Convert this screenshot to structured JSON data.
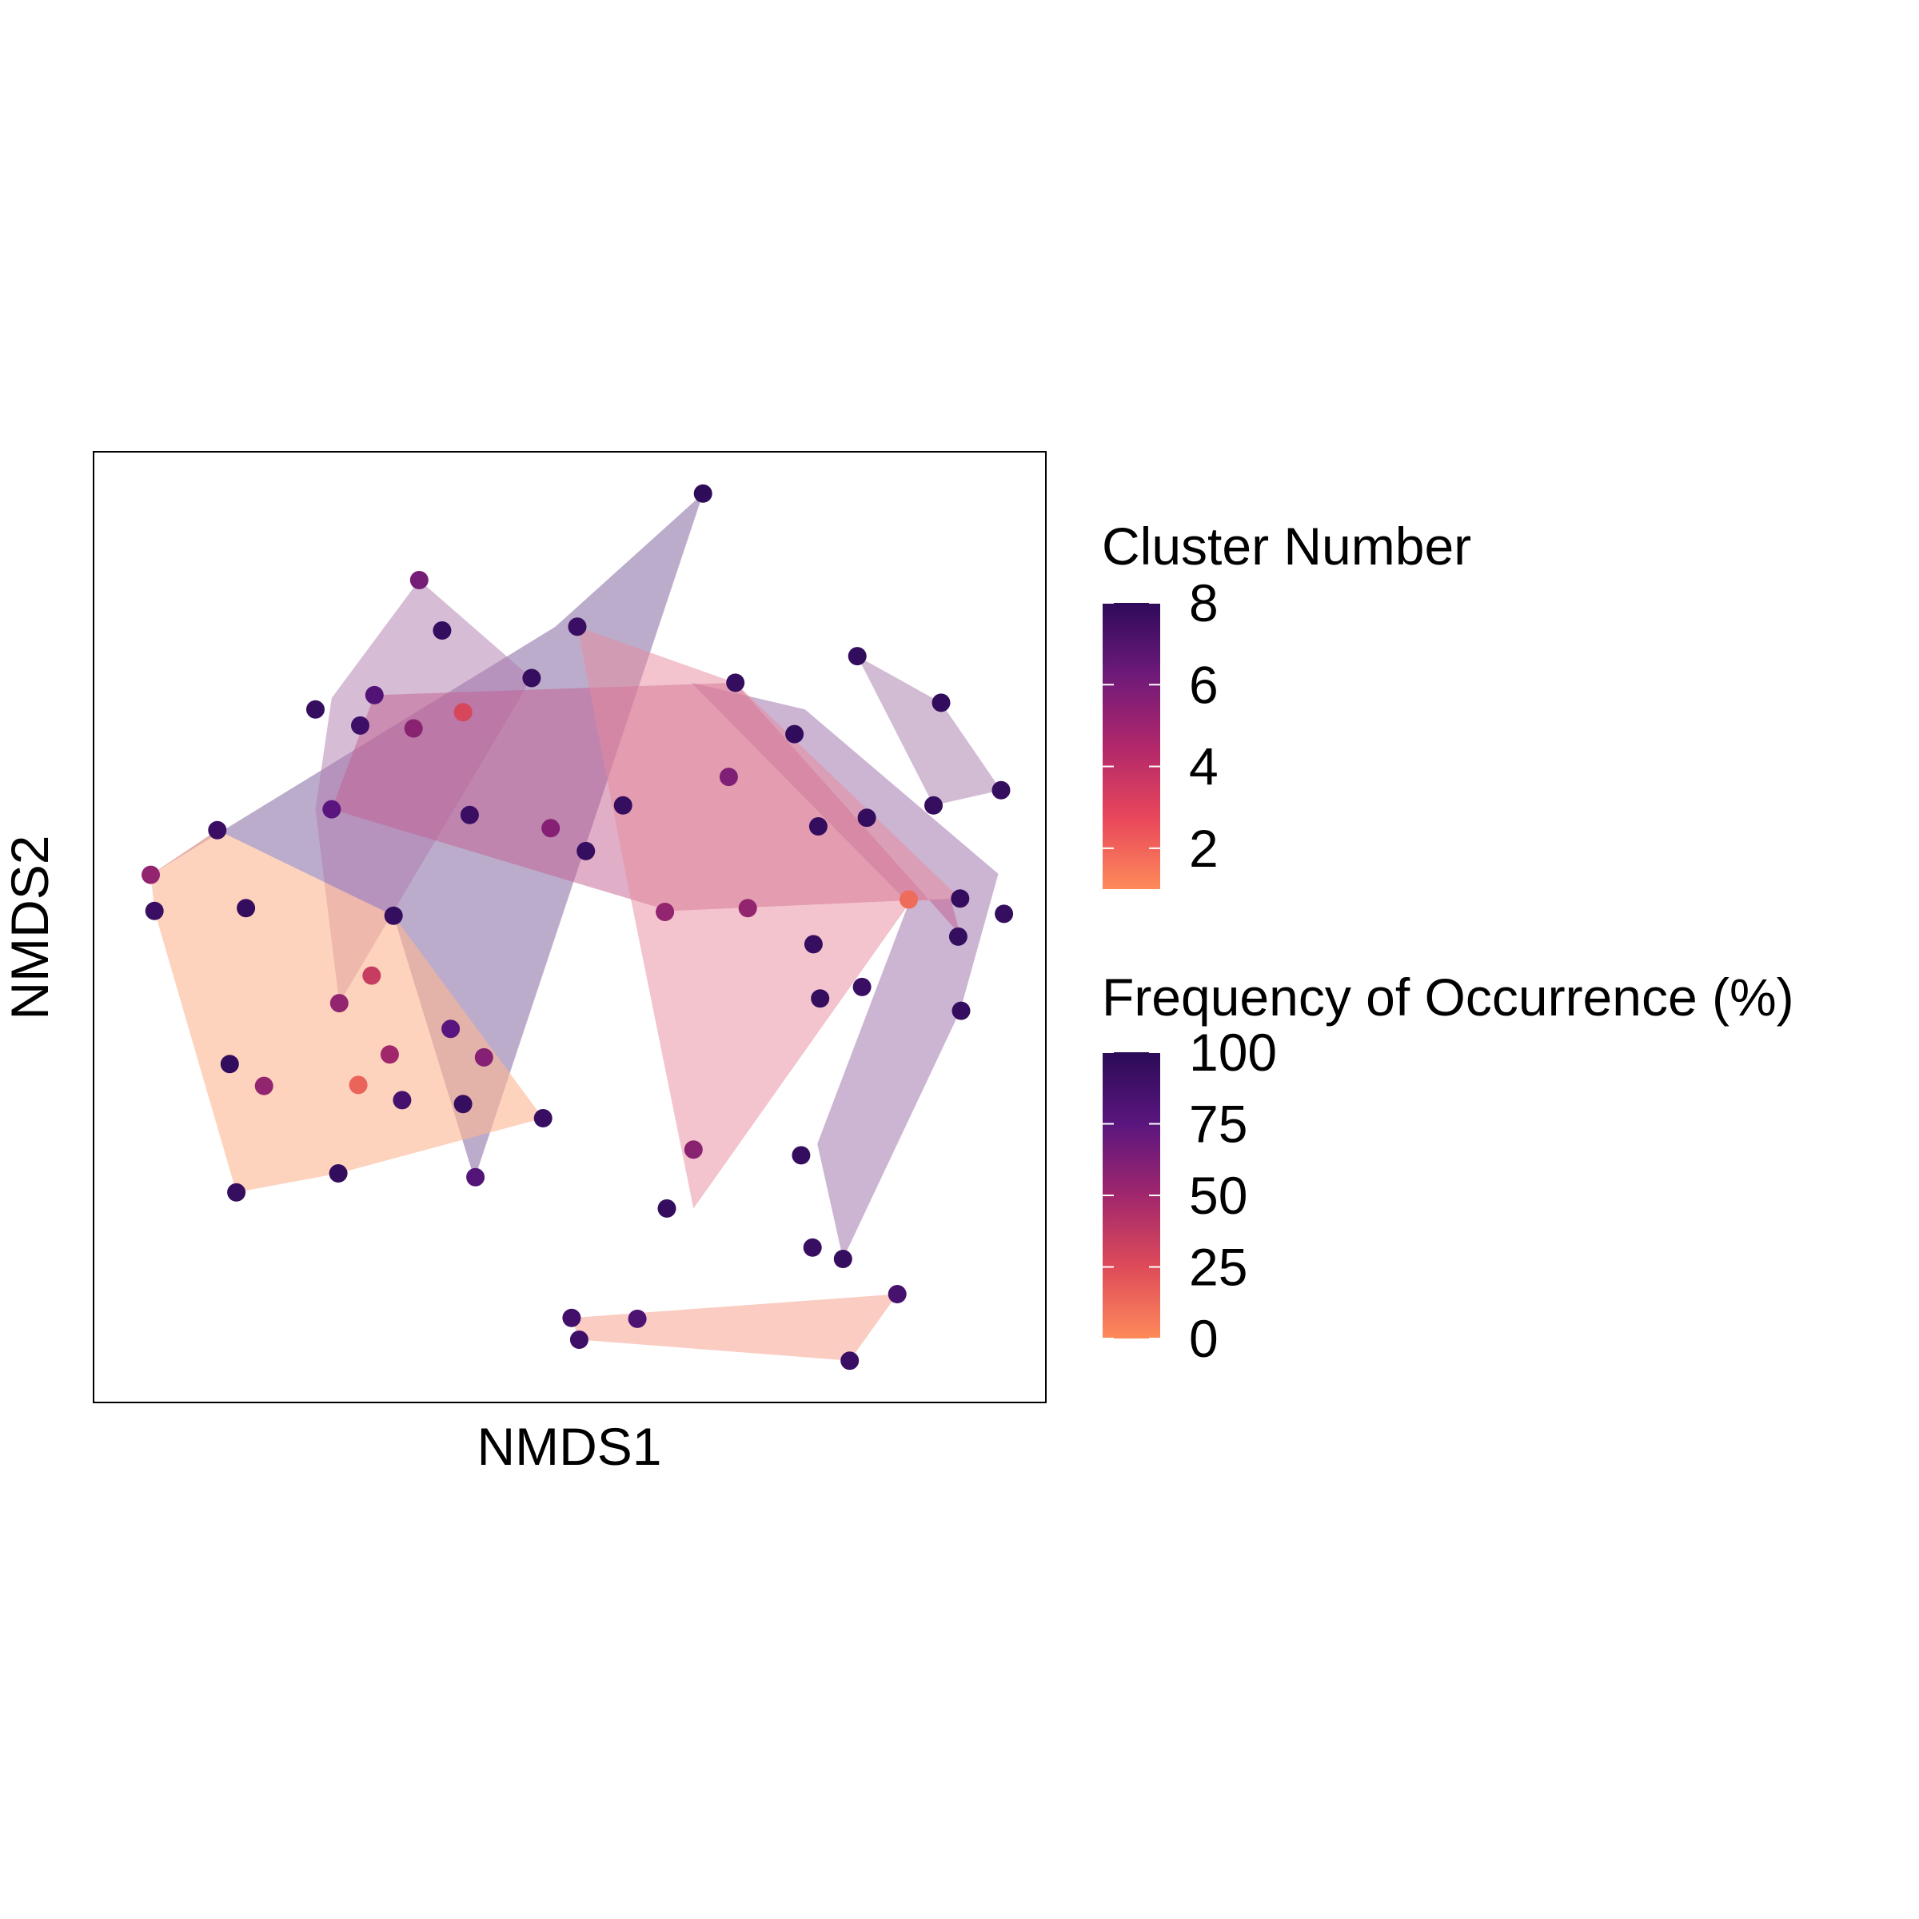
{
  "chart_data": {
    "type": "scatter",
    "xlabel": "NMDS1",
    "ylabel": "NMDS2",
    "xlim": [
      0,
      1
    ],
    "ylim": [
      0,
      1
    ],
    "axis_ticks": false,
    "grid": false,
    "legend_position": "right",
    "legends": [
      {
        "title": "Cluster Number",
        "kind": "colorbar",
        "range": [
          1,
          8
        ],
        "ticks": [
          "8",
          "6",
          "4",
          "2"
        ],
        "tick_values": [
          8,
          6,
          4,
          2
        ],
        "colors": [
          "#fe8a5a",
          "#e8475b",
          "#b1276b",
          "#6e1a7a",
          "#2e0a5a"
        ]
      },
      {
        "title": "Frequency of Occurrence (%)",
        "kind": "colorbar",
        "range": [
          0,
          100
        ],
        "ticks": [
          "100",
          "75",
          "50",
          "25",
          "0"
        ],
        "tick_values": [
          100,
          75,
          50,
          25,
          0
        ],
        "colors": [
          "#2b0b57",
          "#5a167e",
          "#a1276d",
          "#de4b59",
          "#fe8a5a"
        ]
      }
    ],
    "hulls": [
      {
        "cluster": 8,
        "color": "#7a5a9a",
        "opacity": 0.5,
        "points": [
          [
            0.06,
            0.555
          ],
          [
            0.13,
            0.602
          ],
          [
            0.315,
            0.512
          ],
          [
            0.4,
            0.235
          ],
          [
            0.64,
            0.956
          ],
          [
            0.485,
            0.816
          ]
        ]
      },
      {
        "cluster": 7,
        "color": "#9a6aa8",
        "opacity": 0.5,
        "points": [
          [
            0.628,
            0.757
          ],
          [
            0.747,
            0.729
          ],
          [
            0.95,
            0.556
          ],
          [
            0.91,
            0.412
          ],
          [
            0.787,
            0.151
          ],
          [
            0.76,
            0.272
          ],
          [
            0.856,
            0.525
          ]
        ]
      },
      {
        "cluster": 7,
        "color": "#a679a9",
        "opacity": 0.5,
        "points": [
          [
            0.802,
            0.785
          ],
          [
            0.89,
            0.736
          ],
          [
            0.953,
            0.644
          ],
          [
            0.882,
            0.628
          ]
        ]
      },
      {
        "cluster": 6,
        "color": "#b07aae",
        "opacity": 0.5,
        "points": [
          [
            0.25,
            0.741
          ],
          [
            0.233,
            0.624
          ],
          [
            0.258,
            0.42
          ],
          [
            0.46,
            0.762
          ],
          [
            0.342,
            0.865
          ]
        ]
      },
      {
        "cluster": 5,
        "color": "#c25e8f",
        "opacity": 0.5,
        "points": [
          [
            0.295,
            0.744
          ],
          [
            0.674,
            0.757
          ],
          [
            0.91,
            0.492
          ],
          [
            0.9,
            0.53
          ],
          [
            0.605,
            0.517
          ],
          [
            0.25,
            0.624
          ]
        ]
      },
      {
        "cluster": 4,
        "color": "#e88a9c",
        "opacity": 0.5,
        "points": [
          [
            0.508,
            0.816
          ],
          [
            0.674,
            0.757
          ],
          [
            0.91,
            0.53
          ],
          [
            0.858,
            0.527
          ],
          [
            0.63,
            0.204
          ],
          [
            0.56,
            0.55
          ]
        ]
      },
      {
        "cluster": 3,
        "color": "#f59a86",
        "opacity": 0.5,
        "points": [
          [
            0.502,
            0.089
          ],
          [
            0.51,
            0.066
          ],
          [
            0.794,
            0.044
          ],
          [
            0.844,
            0.114
          ]
        ]
      },
      {
        "cluster": 1,
        "color": "#fdb591",
        "opacity": 0.6,
        "points": [
          [
            0.06,
            0.555
          ],
          [
            0.064,
            0.517
          ],
          [
            0.15,
            0.221
          ],
          [
            0.257,
            0.241
          ],
          [
            0.472,
            0.299
          ],
          [
            0.315,
            0.512
          ],
          [
            0.13,
            0.602
          ]
        ]
      }
    ],
    "points": [
      {
        "x": 0.64,
        "y": 0.956,
        "freq": 2
      },
      {
        "x": 0.342,
        "y": 0.865,
        "freq": 35
      },
      {
        "x": 0.366,
        "y": 0.812,
        "freq": 5
      },
      {
        "x": 0.508,
        "y": 0.816,
        "freq": 8
      },
      {
        "x": 0.46,
        "y": 0.762,
        "freq": 6
      },
      {
        "x": 0.295,
        "y": 0.744,
        "freq": 20
      },
      {
        "x": 0.674,
        "y": 0.757,
        "freq": 5
      },
      {
        "x": 0.802,
        "y": 0.785,
        "freq": 4
      },
      {
        "x": 0.233,
        "y": 0.729,
        "freq": 6
      },
      {
        "x": 0.28,
        "y": 0.712,
        "freq": 10
      },
      {
        "x": 0.336,
        "y": 0.709,
        "freq": 42
      },
      {
        "x": 0.388,
        "y": 0.726,
        "freq": 72
      },
      {
        "x": 0.89,
        "y": 0.736,
        "freq": 4
      },
      {
        "x": 0.736,
        "y": 0.703,
        "freq": 3
      },
      {
        "x": 0.667,
        "y": 0.658,
        "freq": 38
      },
      {
        "x": 0.953,
        "y": 0.644,
        "freq": 6
      },
      {
        "x": 0.882,
        "y": 0.628,
        "freq": 6
      },
      {
        "x": 0.25,
        "y": 0.624,
        "freq": 25
      },
      {
        "x": 0.395,
        "y": 0.618,
        "freq": 8
      },
      {
        "x": 0.556,
        "y": 0.628,
        "freq": 6
      },
      {
        "x": 0.812,
        "y": 0.615,
        "freq": 5
      },
      {
        "x": 0.48,
        "y": 0.604,
        "freq": 40
      },
      {
        "x": 0.517,
        "y": 0.58,
        "freq": 6
      },
      {
        "x": 0.761,
        "y": 0.606,
        "freq": 5
      },
      {
        "x": 0.13,
        "y": 0.602,
        "freq": 8
      },
      {
        "x": 0.856,
        "y": 0.529,
        "freq": 88
      },
      {
        "x": 0.91,
        "y": 0.53,
        "freq": 5
      },
      {
        "x": 0.956,
        "y": 0.514,
        "freq": 6
      },
      {
        "x": 0.6,
        "y": 0.516,
        "freq": 45
      },
      {
        "x": 0.687,
        "y": 0.52,
        "freq": 45
      },
      {
        "x": 0.315,
        "y": 0.512,
        "freq": 6
      },
      {
        "x": 0.908,
        "y": 0.49,
        "freq": 6
      },
      {
        "x": 0.756,
        "y": 0.482,
        "freq": 6
      },
      {
        "x": 0.06,
        "y": 0.555,
        "freq": 45
      },
      {
        "x": 0.064,
        "y": 0.517,
        "freq": 8
      },
      {
        "x": 0.16,
        "y": 0.52,
        "freq": 5
      },
      {
        "x": 0.292,
        "y": 0.449,
        "freq": 65
      },
      {
        "x": 0.258,
        "y": 0.42,
        "freq": 45
      },
      {
        "x": 0.807,
        "y": 0.437,
        "freq": 8
      },
      {
        "x": 0.763,
        "y": 0.425,
        "freq": 6
      },
      {
        "x": 0.911,
        "y": 0.412,
        "freq": 5
      },
      {
        "x": 0.375,
        "y": 0.393,
        "freq": 25
      },
      {
        "x": 0.41,
        "y": 0.363,
        "freq": 40
      },
      {
        "x": 0.311,
        "y": 0.366,
        "freq": 50
      },
      {
        "x": 0.143,
        "y": 0.356,
        "freq": 4
      },
      {
        "x": 0.179,
        "y": 0.333,
        "freq": 45
      },
      {
        "x": 0.278,
        "y": 0.334,
        "freq": 85
      },
      {
        "x": 0.324,
        "y": 0.318,
        "freq": 14
      },
      {
        "x": 0.388,
        "y": 0.314,
        "freq": 6
      },
      {
        "x": 0.472,
        "y": 0.299,
        "freq": 7
      },
      {
        "x": 0.63,
        "y": 0.266,
        "freq": 42
      },
      {
        "x": 0.743,
        "y": 0.26,
        "freq": 5
      },
      {
        "x": 0.257,
        "y": 0.241,
        "freq": 4
      },
      {
        "x": 0.401,
        "y": 0.237,
        "freq": 22
      },
      {
        "x": 0.15,
        "y": 0.221,
        "freq": 6
      },
      {
        "x": 0.602,
        "y": 0.204,
        "freq": 5
      },
      {
        "x": 0.755,
        "y": 0.163,
        "freq": 7
      },
      {
        "x": 0.787,
        "y": 0.151,
        "freq": 6
      },
      {
        "x": 0.844,
        "y": 0.114,
        "freq": 15
      },
      {
        "x": 0.502,
        "y": 0.089,
        "freq": 12
      },
      {
        "x": 0.571,
        "y": 0.088,
        "freq": 18
      },
      {
        "x": 0.51,
        "y": 0.066,
        "freq": 10
      },
      {
        "x": 0.794,
        "y": 0.044,
        "freq": 8
      }
    ]
  }
}
